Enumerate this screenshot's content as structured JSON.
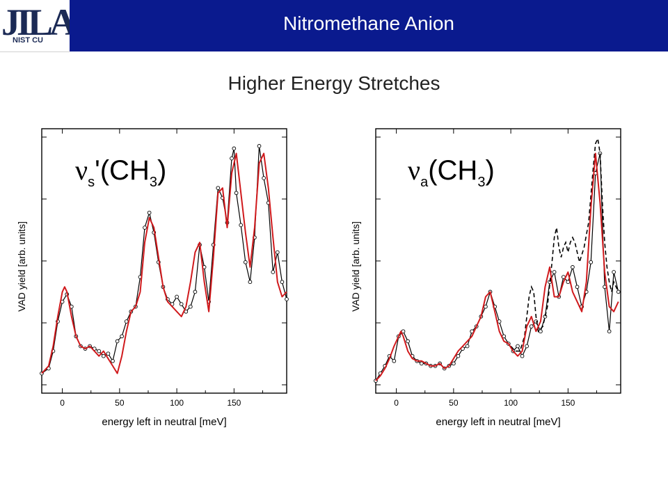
{
  "header": {
    "logo_text": "JILA",
    "logo_subtext": "NIST CU",
    "title": "Nitromethane Anion"
  },
  "slide": {
    "subtitle": "Higher Energy Stretches"
  },
  "colors": {
    "header_bg": "#0a1a8e",
    "header_text": "#ffffff",
    "theory": "#d0191c",
    "experiment": "#000000"
  },
  "chart_data": [
    {
      "type": "line",
      "panel_label_main": "ν",
      "panel_label_sub": "s",
      "panel_label_rest": "'(CH",
      "panel_label_sub2": "3",
      "panel_label_end": ")",
      "xlabel": "energy left in neutral [meV]",
      "ylabel": "VAD yield [arb. units]",
      "xlim": [
        -18,
        196
      ],
      "ylim": [
        -0.05,
        1.02
      ],
      "xticks": [
        0,
        50,
        100,
        150
      ],
      "grid": false,
      "series": [
        {
          "style": "experiment-circles",
          "x": [
            -18,
            -12,
            -8,
            -4,
            0,
            4,
            8,
            12,
            16,
            20,
            24,
            28,
            32,
            36,
            40,
            44,
            48,
            52,
            56,
            60,
            64,
            68,
            72,
            76,
            80,
            84,
            88,
            92,
            96,
            100,
            104,
            108,
            112,
            116,
            120,
            124,
            128,
            132,
            136,
            140,
            144,
            148,
            150,
            152,
            156,
            160,
            164,
            168,
            172,
            176,
            180,
            184,
            188,
            192,
            196
          ],
          "y": [
            0.03,
            0.05,
            0.12,
            0.24,
            0.32,
            0.35,
            0.3,
            0.18,
            0.14,
            0.13,
            0.14,
            0.13,
            0.12,
            0.1,
            0.11,
            0.08,
            0.16,
            0.18,
            0.24,
            0.28,
            0.3,
            0.42,
            0.62,
            0.68,
            0.6,
            0.48,
            0.38,
            0.33,
            0.31,
            0.34,
            0.31,
            0.28,
            0.3,
            0.36,
            0.55,
            0.46,
            0.32,
            0.55,
            0.78,
            0.74,
            0.64,
            0.9,
            0.94,
            0.76,
            0.63,
            0.48,
            0.4,
            0.58,
            0.95,
            0.82,
            0.72,
            0.44,
            0.52,
            0.4,
            0.33
          ]
        },
        {
          "style": "theory-red",
          "x": [
            -18,
            -12,
            -8,
            -4,
            0,
            2,
            4,
            8,
            12,
            16,
            20,
            24,
            28,
            32,
            36,
            40,
            44,
            48,
            52,
            56,
            60,
            64,
            68,
            72,
            76,
            80,
            84,
            88,
            92,
            96,
            100,
            104,
            108,
            112,
            116,
            120,
            124,
            128,
            132,
            136,
            140,
            144,
            148,
            152,
            156,
            160,
            164,
            168,
            172,
            176,
            180,
            184,
            188,
            192,
            196
          ],
          "y": [
            0.03,
            0.06,
            0.14,
            0.26,
            0.36,
            0.38,
            0.36,
            0.26,
            0.18,
            0.14,
            0.13,
            0.14,
            0.12,
            0.1,
            0.12,
            0.09,
            0.06,
            0.03,
            0.1,
            0.2,
            0.28,
            0.3,
            0.36,
            0.56,
            0.66,
            0.62,
            0.5,
            0.38,
            0.32,
            0.3,
            0.28,
            0.26,
            0.3,
            0.4,
            0.52,
            0.56,
            0.4,
            0.28,
            0.5,
            0.76,
            0.78,
            0.62,
            0.84,
            0.92,
            0.76,
            0.6,
            0.46,
            0.62,
            0.88,
            0.92,
            0.78,
            0.58,
            0.4,
            0.34,
            0.36
          ]
        }
      ]
    },
    {
      "type": "line",
      "panel_label_main": "ν",
      "panel_label_sub": "a",
      "panel_label_rest": "(CH",
      "panel_label_sub2": "3",
      "panel_label_end": ")",
      "xlabel": "energy left in neutral [meV]",
      "ylabel": "VAD yield [arb. units]",
      "xlim": [
        -18,
        196
      ],
      "ylim": [
        -0.05,
        1.02
      ],
      "xticks": [
        0,
        50,
        100,
        150
      ],
      "grid": false,
      "series": [
        {
          "style": "experiment-circles",
          "x": [
            -18,
            -14,
            -10,
            -6,
            -2,
            2,
            6,
            10,
            14,
            18,
            22,
            26,
            30,
            34,
            38,
            42,
            46,
            50,
            54,
            58,
            62,
            66,
            70,
            74,
            78,
            82,
            86,
            90,
            94,
            98,
            102,
            106,
            110,
            114,
            118,
            122,
            126,
            130,
            134,
            138,
            142,
            146,
            150,
            154,
            158,
            162,
            166,
            170,
            174,
            178,
            182,
            186,
            190,
            194
          ],
          "y": [
            0.0,
            0.03,
            0.06,
            0.1,
            0.08,
            0.18,
            0.2,
            0.16,
            0.1,
            0.08,
            0.07,
            0.07,
            0.06,
            0.06,
            0.07,
            0.05,
            0.06,
            0.07,
            0.1,
            0.13,
            0.14,
            0.2,
            0.22,
            0.26,
            0.3,
            0.36,
            0.3,
            0.24,
            0.18,
            0.15,
            0.12,
            0.14,
            0.1,
            0.14,
            0.22,
            0.24,
            0.2,
            0.26,
            0.4,
            0.44,
            0.34,
            0.42,
            0.4,
            0.46,
            0.38,
            0.3,
            0.36,
            0.48,
            0.84,
            0.92,
            0.38,
            0.2,
            0.44,
            0.36
          ]
        },
        {
          "style": "experiment-dashed",
          "x": [
            100,
            104,
            108,
            112,
            116,
            118,
            120,
            122,
            124,
            128,
            132,
            136,
            138,
            140,
            142,
            144,
            146,
            148,
            150,
            152,
            154,
            156,
            158,
            160,
            164,
            168,
            172,
            174,
            176,
            178,
            180,
            182,
            184,
            186,
            188,
            190,
            194
          ],
          "y": [
            0.14,
            0.12,
            0.12,
            0.18,
            0.34,
            0.38,
            0.36,
            0.26,
            0.2,
            0.22,
            0.3,
            0.48,
            0.58,
            0.62,
            0.54,
            0.5,
            0.54,
            0.56,
            0.52,
            0.56,
            0.58,
            0.56,
            0.52,
            0.48,
            0.54,
            0.64,
            0.86,
            0.96,
            0.98,
            0.92,
            0.72,
            0.56,
            0.46,
            0.4,
            0.36,
            0.4,
            0.36
          ]
        },
        {
          "style": "theory-red",
          "x": [
            -18,
            -14,
            -10,
            -6,
            -2,
            2,
            4,
            6,
            10,
            14,
            18,
            22,
            26,
            30,
            34,
            38,
            42,
            46,
            50,
            54,
            58,
            62,
            66,
            70,
            74,
            78,
            82,
            86,
            90,
            94,
            98,
            102,
            106,
            110,
            114,
            118,
            122,
            126,
            130,
            134,
            138,
            142,
            146,
            150,
            154,
            158,
            162,
            166,
            170,
            174,
            178,
            182,
            186,
            190,
            194
          ],
          "y": [
            0.0,
            0.02,
            0.05,
            0.09,
            0.14,
            0.18,
            0.2,
            0.18,
            0.12,
            0.09,
            0.08,
            0.08,
            0.07,
            0.06,
            0.06,
            0.07,
            0.05,
            0.06,
            0.09,
            0.12,
            0.14,
            0.16,
            0.18,
            0.22,
            0.26,
            0.34,
            0.36,
            0.28,
            0.2,
            0.16,
            0.15,
            0.12,
            0.1,
            0.12,
            0.22,
            0.26,
            0.2,
            0.24,
            0.38,
            0.46,
            0.34,
            0.34,
            0.4,
            0.44,
            0.36,
            0.32,
            0.28,
            0.4,
            0.7,
            0.92,
            0.72,
            0.44,
            0.3,
            0.28,
            0.32
          ]
        }
      ]
    }
  ]
}
